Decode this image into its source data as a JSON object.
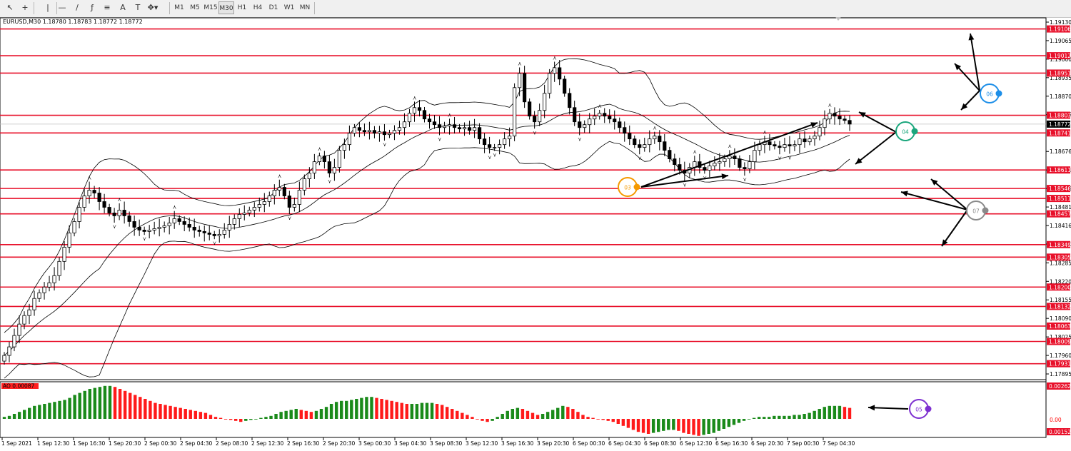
{
  "symbol_info": "EURUSD,M30  1.18780 1.18783 1.18772 1.18772",
  "toolbar": {
    "tools": [
      {
        "name": "cursor-icon",
        "glyph": "↖"
      },
      {
        "name": "crosshair-icon",
        "glyph": "+"
      },
      {
        "name": "vertical-line-icon",
        "glyph": "|"
      },
      {
        "name": "horizontal-line-icon",
        "glyph": "—"
      },
      {
        "name": "trendline-icon",
        "glyph": "/"
      },
      {
        "name": "fibonacci-icon",
        "glyph": "ƒ"
      },
      {
        "name": "channel-icon",
        "glyph": "≡"
      },
      {
        "name": "text-icon",
        "glyph": "A"
      },
      {
        "name": "text-label-icon",
        "glyph": "T"
      },
      {
        "name": "shapes-icon",
        "glyph": "✥▾"
      }
    ],
    "timeframes": [
      "M1",
      "M5",
      "M15",
      "M30",
      "H1",
      "H4",
      "D1",
      "W1",
      "MN"
    ],
    "active_timeframe": "M30"
  },
  "colors": {
    "level_line": "#e8102a",
    "bull": "#1a8a1a",
    "bear": "#ff1a1a",
    "candle": "#000000",
    "m03": "#f59a00",
    "m04": "#1aa67c",
    "m05": "#7d2fd0",
    "m06": "#1c8ee8",
    "m07": "#8a8a8a"
  },
  "chart_data": {
    "type": "candlestick",
    "symbol": "EURUSD",
    "timeframe": "M30",
    "ohlc_header": {
      "open": 1.1878,
      "high": 1.18783,
      "low": 1.18772,
      "close": 1.18772
    },
    "current_price": "1.18772",
    "price_ticks": [
      "1.19130",
      "1.19065",
      "1.19000",
      "1.18935",
      "1.18870",
      "1.18805",
      "1.18676",
      "1.18611",
      "1.18546",
      "1.18481",
      "1.18416",
      "1.18351",
      "1.18285",
      "1.18220",
      "1.18155",
      "1.18090",
      "1.18025",
      "1.17960",
      "1.17895"
    ],
    "price_range": [
      1.17875,
      1.19145
    ],
    "support_resistance_levels": [
      {
        "price": 1.19106,
        "label": "1.19106"
      },
      {
        "price": 1.19012,
        "label": "1.19012"
      },
      {
        "price": 1.18951,
        "label": "1.18951"
      },
      {
        "price": 1.18803,
        "label": "1.18803"
      },
      {
        "price": 1.18741,
        "label": "1.18741"
      },
      {
        "price": 1.18611,
        "label": "1.18611"
      },
      {
        "price": 1.18546,
        "label": "1.18546"
      },
      {
        "price": 1.18511,
        "label": "1.18511"
      },
      {
        "price": 1.18457,
        "label": "1.18457"
      },
      {
        "price": 1.18349,
        "label": "1.18349"
      },
      {
        "price": 1.18305,
        "label": "1.18305"
      },
      {
        "price": 1.182,
        "label": "1.18200"
      },
      {
        "price": 1.18132,
        "label": "1.18132"
      },
      {
        "price": 1.18063,
        "label": "1.18063"
      },
      {
        "price": 1.18009,
        "label": "1.18009"
      },
      {
        "price": 1.17931,
        "label": "1.17931"
      }
    ],
    "time_labels": [
      "1 Sep 2021",
      "1 Sep 12:30",
      "1 Sep 16:30",
      "1 Sep 20:30",
      "2 Sep 00:30",
      "2 Sep 04:30",
      "2 Sep 08:30",
      "2 Sep 12:30",
      "2 Sep 16:30",
      "2 Sep 20:30",
      "3 Sep 00:30",
      "3 Sep 04:30",
      "3 Sep 08:30",
      "3 Sep 12:30",
      "3 Sep 16:30",
      "3 Sep 20:30",
      "6 Sep 00:30",
      "6 Sep 04:30",
      "6 Sep 08:30",
      "6 Sep 12:30",
      "6 Sep 16:30",
      "6 Sep 20:30",
      "7 Sep 00:30",
      "7 Sep 04:30"
    ],
    "closes": [
      1.1796,
      1.1799,
      1.1803,
      1.1807,
      1.181,
      1.1812,
      1.1816,
      1.1818,
      1.182,
      1.18215,
      1.1824,
      1.1829,
      1.1834,
      1.1839,
      1.1843,
      1.1848,
      1.1852,
      1.1854,
      1.1853,
      1.185,
      1.1848,
      1.1846,
      1.1845,
      1.1847,
      1.1845,
      1.1843,
      1.1841,
      1.184,
      1.18395,
      1.184,
      1.18405,
      1.1841,
      1.18415,
      1.18425,
      1.1844,
      1.1843,
      1.1842,
      1.1841,
      1.184,
      1.18395,
      1.1839,
      1.18385,
      1.1838,
      1.18385,
      1.184,
      1.1842,
      1.1844,
      1.18455,
      1.1846,
      1.1847,
      1.1848,
      1.1849,
      1.185,
      1.1852,
      1.1854,
      1.1855,
      1.1852,
      1.1848,
      1.1849,
      1.1854,
      1.1858,
      1.186,
      1.1864,
      1.1866,
      1.1864,
      1.186,
      1.1862,
      1.1868,
      1.187,
      1.1874,
      1.1876,
      1.1875,
      1.18745,
      1.1875,
      1.1874,
      1.18745,
      1.18735,
      1.1874,
      1.1875,
      1.1876,
      1.1878,
      1.1881,
      1.1883,
      1.1882,
      1.1879,
      1.1878,
      1.1877,
      1.1876,
      1.18765,
      1.1877,
      1.1876,
      1.18755,
      1.1876,
      1.1875,
      1.1876,
      1.1872,
      1.187,
      1.1869,
      1.1869,
      1.187,
      1.1872,
      1.1873,
      1.189,
      1.1895,
      1.1885,
      1.188,
      1.1878,
      1.1882,
      1.1888,
      1.1895,
      1.1897,
      1.1893,
      1.1888,
      1.1883,
      1.1878,
      1.1876,
      1.1877,
      1.1879,
      1.188,
      1.1881,
      1.188,
      1.1879,
      1.1878,
      1.1876,
      1.1874,
      1.1872,
      1.187,
      1.1869,
      1.187,
      1.1872,
      1.1873,
      1.1871,
      1.1868,
      1.1865,
      1.1863,
      1.1861,
      1.186,
      1.1862,
      1.1864,
      1.1862,
      1.1861,
      1.18625,
      1.18635,
      1.1864,
      1.1865,
      1.1866,
      1.1865,
      1.1862,
      1.18615,
      1.1864,
      1.1868,
      1.187,
      1.1871,
      1.187,
      1.18695,
      1.1869,
      1.187,
      1.18695,
      1.187,
      1.1872,
      1.1871,
      1.1872,
      1.1873,
      1.1876,
      1.1879,
      1.1881,
      1.188,
      1.1879,
      1.18785,
      1.18772
    ],
    "oscillator": {
      "label": "AO 0.00087",
      "ticks": [
        "0.00262",
        "0.00",
        "0.00152"
      ],
      "values": [
        0.02,
        0.03,
        0.05,
        0.07,
        0.09,
        0.11,
        0.13,
        0.14,
        0.15,
        0.16,
        0.17,
        0.18,
        0.19,
        0.21,
        0.24,
        0.26,
        0.28,
        0.3,
        0.31,
        0.32,
        0.33,
        0.33,
        0.32,
        0.3,
        0.28,
        0.26,
        0.24,
        0.22,
        0.2,
        0.18,
        0.16,
        0.15,
        0.14,
        0.13,
        0.12,
        0.11,
        0.1,
        0.09,
        0.08,
        0.07,
        0.06,
        0.04,
        0.02,
        0.01,
        0.0,
        -0.01,
        -0.02,
        -0.03,
        -0.02,
        -0.01,
        0.0,
        0.01,
        0.02,
        0.03,
        0.05,
        0.07,
        0.08,
        0.09,
        0.1,
        0.09,
        0.08,
        0.07,
        0.08,
        0.1,
        0.12,
        0.15,
        0.17,
        0.18,
        0.18,
        0.19,
        0.2,
        0.21,
        0.22,
        0.22,
        0.21,
        0.2,
        0.19,
        0.18,
        0.17,
        0.16,
        0.15,
        0.15,
        0.15,
        0.16,
        0.16,
        0.16,
        0.15,
        0.14,
        0.12,
        0.1,
        0.08,
        0.06,
        0.04,
        0.02,
        0.0,
        -0.02,
        -0.03,
        -0.02,
        0.02,
        0.05,
        0.08,
        0.1,
        0.11,
        0.1,
        0.08,
        0.06,
        0.04,
        0.05,
        0.07,
        0.09,
        0.11,
        0.13,
        0.12,
        0.1,
        0.07,
        0.04,
        0.02,
        0.01,
        0.0,
        -0.01,
        -0.02,
        -0.03,
        -0.05,
        -0.07,
        -0.09,
        -0.11,
        -0.13,
        -0.14,
        -0.15,
        -0.14,
        -0.13,
        -0.12,
        -0.11,
        -0.11,
        -0.12,
        -0.14,
        -0.15,
        -0.16,
        -0.17,
        -0.16,
        -0.15,
        -0.14,
        -0.12,
        -0.1,
        -0.08,
        -0.06,
        -0.04,
        -0.02,
        0.0,
        0.01,
        0.02,
        0.02,
        0.02,
        0.03,
        0.03,
        0.03,
        0.03,
        0.04,
        0.04,
        0.05,
        0.06,
        0.08,
        0.1,
        0.12,
        0.13,
        0.13,
        0.13,
        0.12,
        0.11
      ]
    },
    "markers": [
      {
        "id": "03",
        "label": "03"
      },
      {
        "id": "04",
        "label": "04"
      },
      {
        "id": "05",
        "label": "05"
      },
      {
        "id": "06",
        "label": "06"
      },
      {
        "id": "07",
        "label": "07"
      }
    ]
  }
}
